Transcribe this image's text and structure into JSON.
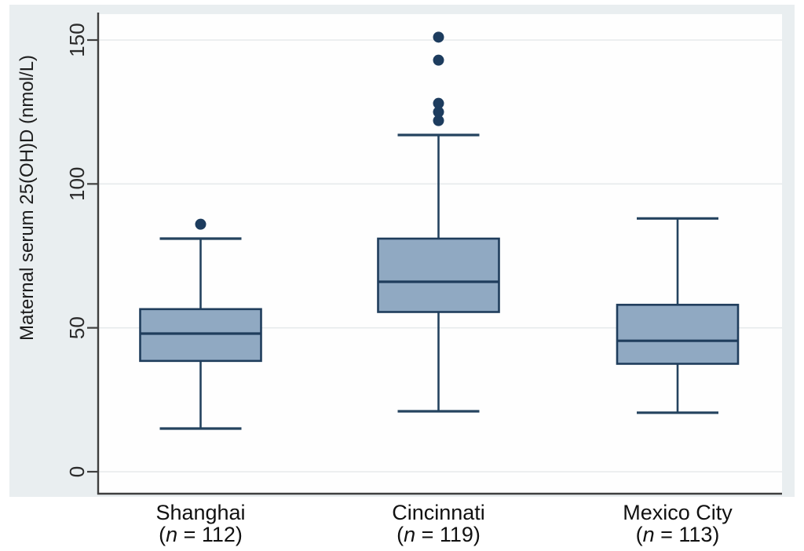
{
  "figure": {
    "colors": {
      "panel_bg": "#e9eef0",
      "plot_bg": "#fefefe",
      "grid": "#e7eaec",
      "axis": "#3f3f3f",
      "box_fill": "#90a9c2",
      "box_border": "#1f3d5c",
      "whisker": "#24435f",
      "outlier": "#1d3c5e",
      "text": "#1c1c1c"
    }
  },
  "chart_data": {
    "type": "boxplot",
    "title": "",
    "ylabel": "Maternal serum 25(OH)D (nmol/L)",
    "xlabel": "",
    "ylim": [
      0,
      159
    ],
    "yticks": [
      0,
      50,
      100,
      150
    ],
    "grid": true,
    "legend": "none",
    "categories": [
      {
        "label": "Shanghai",
        "n": 112,
        "whisker_low": 15,
        "q1": 38.5,
        "median": 48,
        "q3": 56.5,
        "whisker_high": 81,
        "outliers": [
          86
        ]
      },
      {
        "label": "Cincinnati",
        "n": 119,
        "whisker_low": 21,
        "q1": 55.5,
        "median": 66,
        "q3": 81,
        "whisker_high": 117,
        "outliers": [
          122,
          125,
          128,
          143,
          151
        ]
      },
      {
        "label": "Mexico City",
        "n": 113,
        "whisker_low": 20.5,
        "q1": 37.5,
        "median": 45.5,
        "q3": 58,
        "whisker_high": 88,
        "outliers": []
      }
    ]
  }
}
